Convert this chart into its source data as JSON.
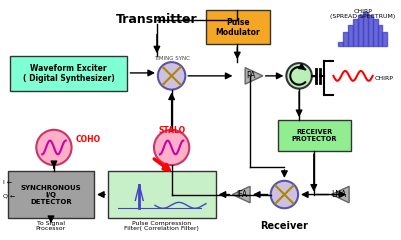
{
  "bg_color": "#ffffff",
  "transmitter_label": "Transmitter",
  "pulse_mod_label": "Pulse\nModulator",
  "pulse_mod_color": "#f5a623",
  "waveform_label": "Waveform Exciter\n( Digital Synthesizer)",
  "waveform_color": "#7fffd4",
  "timing_sync_label": "TIMING SYNC",
  "pa_label": "PA",
  "receiver_protector_label": "RECEIVER\nPROTECTOR",
  "receiver_protector_color": "#90ee90",
  "chirp_label1": "CHIRP\n(SPREAD SPECTRUM)",
  "chirp_label2": "CHIRP",
  "lna_label": "LNA",
  "ifa_label": "IFA",
  "coho_label": "COHO",
  "stalo_label": "STALO",
  "sync_detector_label": "SYNCHRONOUS\nI/Q\nDETECTOR",
  "sync_detector_color": "#a0a0a0",
  "pulse_compress_label": "Pulse Compression\nFilter( Correlation Filter)",
  "pulse_compress_color": "#c8f0c8",
  "receiver_label": "Receiver",
  "to_signal_label": "To Signal\nProcessor"
}
